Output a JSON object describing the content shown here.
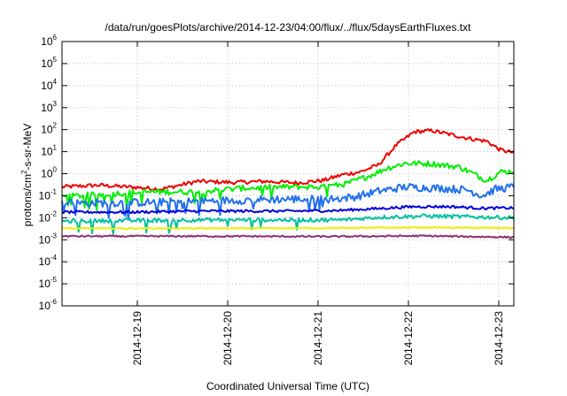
{
  "chart_data": {
    "type": "line",
    "title": "/data/run/goesPlots/archive/2014-12-23/04:00/flux/../flux/5daysEarthFluxes.txt",
    "xlabel": "Coordinated Universal Time (UTC)",
    "ylabel": "protons/cm²-s-sr-MeV",
    "ylabel_parts": {
      "before": "protons/cm",
      "sup": "2",
      "after": "-s-sr-MeV"
    },
    "y_scale": "log",
    "ylim": [
      1e-06,
      1000000.0
    ],
    "y_ticks": [
      {
        "value": 1e-06,
        "base": "10",
        "exp": "-6"
      },
      {
        "value": 1e-05,
        "base": "10",
        "exp": "-5"
      },
      {
        "value": 0.0001,
        "base": "10",
        "exp": "-4"
      },
      {
        "value": 0.001,
        "base": "10",
        "exp": "-3"
      },
      {
        "value": 0.01,
        "base": "10",
        "exp": "-2"
      },
      {
        "value": 0.1,
        "base": "10",
        "exp": "-1"
      },
      {
        "value": 1.0,
        "base": "10",
        "exp": "0"
      },
      {
        "value": 10.0,
        "base": "10",
        "exp": "1"
      },
      {
        "value": 100.0,
        "base": "10",
        "exp": "2"
      },
      {
        "value": 1000.0,
        "base": "10",
        "exp": "3"
      },
      {
        "value": 10000.0,
        "base": "10",
        "exp": "4"
      },
      {
        "value": 100000.0,
        "base": "10",
        "exp": "5"
      },
      {
        "value": 1000000.0,
        "base": "10",
        "exp": "6"
      }
    ],
    "x_range": [
      "2014-12-18 04:00",
      "2014-12-23 04:00"
    ],
    "x_ticks": [
      "2014-12-19",
      "2014-12-20",
      "2014-12-21",
      "2014-12-22",
      "2014-12-23"
    ],
    "grid": true,
    "series": [
      {
        "color": "#ee0000",
        "baseline": [
          [
            0,
            0.25
          ],
          [
            0.08,
            0.3
          ],
          [
            0.15,
            0.25
          ],
          [
            0.22,
            0.2
          ],
          [
            0.3,
            0.45
          ],
          [
            0.38,
            0.4
          ],
          [
            0.45,
            0.45
          ],
          [
            0.52,
            0.38
          ],
          [
            0.58,
            0.5
          ],
          [
            0.62,
            0.9
          ],
          [
            0.66,
            1.2
          ],
          [
            0.7,
            2.5
          ],
          [
            0.74,
            20
          ],
          [
            0.78,
            80
          ],
          [
            0.82,
            90
          ],
          [
            0.86,
            60
          ],
          [
            0.9,
            40
          ],
          [
            0.94,
            30
          ],
          [
            0.97,
            12
          ],
          [
            1.0,
            9
          ]
        ]
      },
      {
        "color": "#00ee00",
        "baseline": [
          [
            0,
            0.09
          ],
          [
            0.1,
            0.12
          ],
          [
            0.2,
            0.15
          ],
          [
            0.3,
            0.15
          ],
          [
            0.4,
            0.22
          ],
          [
            0.5,
            0.25
          ],
          [
            0.58,
            0.25
          ],
          [
            0.63,
            0.35
          ],
          [
            0.68,
            0.8
          ],
          [
            0.72,
            1.8
          ],
          [
            0.76,
            3
          ],
          [
            0.82,
            2.8
          ],
          [
            0.88,
            2
          ],
          [
            0.92,
            0.8
          ],
          [
            0.94,
            0.5
          ],
          [
            0.97,
            1.2
          ],
          [
            1.0,
            1.3
          ]
        ]
      },
      {
        "color": "#2070ee",
        "baseline": [
          [
            0,
            0.045
          ],
          [
            0.2,
            0.05
          ],
          [
            0.35,
            0.06
          ],
          [
            0.5,
            0.07
          ],
          [
            0.6,
            0.07
          ],
          [
            0.65,
            0.09
          ],
          [
            0.7,
            0.16
          ],
          [
            0.76,
            0.25
          ],
          [
            0.84,
            0.22
          ],
          [
            0.9,
            0.18
          ],
          [
            0.93,
            0.1
          ],
          [
            0.96,
            0.2
          ],
          [
            1.0,
            0.25
          ]
        ]
      },
      {
        "color": "#0000dd",
        "baseline": [
          [
            0,
            0.018
          ],
          [
            0.15,
            0.018
          ],
          [
            0.3,
            0.02
          ],
          [
            0.5,
            0.02
          ],
          [
            0.6,
            0.021
          ],
          [
            0.7,
            0.026
          ],
          [
            0.78,
            0.032
          ],
          [
            0.86,
            0.032
          ],
          [
            0.93,
            0.027
          ],
          [
            1.0,
            0.028
          ]
        ]
      },
      {
        "color": "#00c0a0",
        "baseline": [
          [
            0,
            0.007
          ],
          [
            0.3,
            0.008
          ],
          [
            0.5,
            0.008
          ],
          [
            0.62,
            0.008
          ],
          [
            0.7,
            0.0105
          ],
          [
            0.8,
            0.012
          ],
          [
            0.9,
            0.011
          ],
          [
            1.0,
            0.01
          ]
        ]
      },
      {
        "color": "#eeee00",
        "baseline": [
          [
            0,
            0.0033
          ],
          [
            0.3,
            0.0033
          ],
          [
            0.6,
            0.0034
          ],
          [
            0.8,
            0.0036
          ],
          [
            1.0,
            0.0034
          ]
        ]
      },
      {
        "color": "#903070",
        "baseline": [
          [
            0,
            0.00145
          ],
          [
            0.3,
            0.00145
          ],
          [
            0.6,
            0.0014
          ],
          [
            0.8,
            0.0015
          ],
          [
            1.0,
            0.0013
          ]
        ]
      }
    ]
  }
}
